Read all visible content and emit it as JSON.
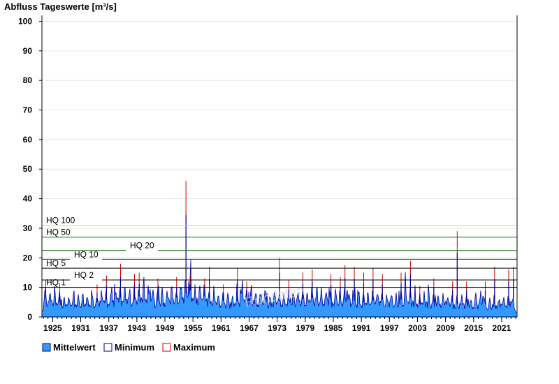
{
  "chart_data": {
    "type": "area",
    "title": "Abfluss Tageswerte [m³/s]",
    "ylim": [
      0,
      102
    ],
    "y_ticks": [
      0,
      10,
      20,
      30,
      40,
      50,
      60,
      70,
      80,
      90,
      100
    ],
    "xlim": [
      1922.7,
      2024.3
    ],
    "x_ticks": [
      1925,
      1931,
      1937,
      1943,
      1949,
      1955,
      1961,
      1967,
      1973,
      1979,
      1985,
      1991,
      1997,
      2003,
      2009,
      2015,
      2021
    ],
    "grid": true,
    "legend_position": "bottom-left",
    "series": [
      {
        "name": "Mittelwert",
        "color": "#3399ff",
        "values": [
          [
            1923,
            6.5
          ],
          [
            1924,
            5.5
          ],
          [
            1925,
            6.0
          ],
          [
            1926,
            5.0
          ],
          [
            1927,
            5.5
          ],
          [
            1928,
            4.5
          ],
          [
            1929,
            4.8
          ],
          [
            1930,
            5.0
          ],
          [
            1931,
            4.5
          ],
          [
            1932,
            5.2
          ],
          [
            1933,
            4.8
          ],
          [
            1934,
            5.0
          ],
          [
            1935,
            5.5
          ],
          [
            1936,
            6.0
          ],
          [
            1937,
            5.5
          ],
          [
            1938,
            6.0
          ],
          [
            1939,
            6.5
          ],
          [
            1940,
            6.0
          ],
          [
            1941,
            6.5
          ],
          [
            1942,
            6.0
          ],
          [
            1943,
            7.0
          ],
          [
            1944,
            6.5
          ],
          [
            1945,
            7.0
          ],
          [
            1946,
            6.0
          ],
          [
            1947,
            5.5
          ],
          [
            1948,
            6.5
          ],
          [
            1949,
            6.0
          ],
          [
            1950,
            7.0
          ],
          [
            1951,
            6.5
          ],
          [
            1952,
            7.0
          ],
          [
            1953,
            8.0
          ],
          [
            1954,
            9.0
          ],
          [
            1955,
            7.0
          ],
          [
            1956,
            6.5
          ],
          [
            1957,
            7.0
          ],
          [
            1958,
            6.5
          ],
          [
            1959,
            5.5
          ],
          [
            1960,
            5.5
          ],
          [
            1961,
            5.5
          ],
          [
            1962,
            5.0
          ],
          [
            1963,
            5.0
          ],
          [
            1964,
            5.5
          ],
          [
            1965,
            6.0
          ],
          [
            1966,
            6.0
          ],
          [
            1967,
            6.0
          ],
          [
            1968,
            6.0
          ],
          [
            1969,
            5.5
          ],
          [
            1970,
            6.0
          ],
          [
            1971,
            5.0
          ],
          [
            1972,
            5.0
          ],
          [
            1973,
            5.5
          ],
          [
            1974,
            6.0
          ],
          [
            1975,
            5.5
          ],
          [
            1976,
            5.0
          ],
          [
            1977,
            6.0
          ],
          [
            1978,
            6.0
          ],
          [
            1979,
            6.5
          ],
          [
            1980,
            6.5
          ],
          [
            1981,
            6.5
          ],
          [
            1982,
            6.0
          ],
          [
            1983,
            6.0
          ],
          [
            1984,
            6.0
          ],
          [
            1985,
            5.5
          ],
          [
            1986,
            6.5
          ],
          [
            1987,
            6.0
          ],
          [
            1988,
            6.0
          ],
          [
            1989,
            5.5
          ],
          [
            1990,
            5.5
          ],
          [
            1991,
            5.0
          ],
          [
            1992,
            5.5
          ],
          [
            1993,
            5.5
          ],
          [
            1994,
            6.0
          ],
          [
            1995,
            6.0
          ],
          [
            1996,
            5.0
          ],
          [
            1997,
            5.5
          ],
          [
            1998,
            5.5
          ],
          [
            1999,
            6.0
          ],
          [
            2000,
            6.0
          ],
          [
            2001,
            6.5
          ],
          [
            2002,
            6.0
          ],
          [
            2003,
            4.5
          ],
          [
            2004,
            5.0
          ],
          [
            2005,
            5.5
          ],
          [
            2006,
            5.0
          ],
          [
            2007,
            5.5
          ],
          [
            2008,
            5.0
          ],
          [
            2009,
            5.0
          ],
          [
            2010,
            5.0
          ],
          [
            2011,
            4.5
          ],
          [
            2012,
            5.0
          ],
          [
            2013,
            5.0
          ],
          [
            2014,
            4.5
          ],
          [
            2015,
            4.5
          ],
          [
            2016,
            4.5
          ],
          [
            2017,
            4.5
          ],
          [
            2018,
            4.0
          ],
          [
            2019,
            4.5
          ],
          [
            2020,
            4.0
          ],
          [
            2021,
            4.5
          ],
          [
            2022,
            4.0
          ],
          [
            2023,
            6.0
          ],
          [
            2024,
            2.0
          ]
        ]
      },
      {
        "name": "Minimum",
        "color": "#000080",
        "values": []
      },
      {
        "name": "Maximum",
        "color": "#cc0000",
        "values": [
          [
            1923,
            12.5
          ],
          [
            1926,
            11.5
          ],
          [
            1934,
            11.0
          ],
          [
            1936,
            14.0
          ],
          [
            1939,
            18.0
          ],
          [
            1942,
            14.5
          ],
          [
            1943,
            15.0
          ],
          [
            1947,
            13.0
          ],
          [
            1951,
            13.5
          ],
          [
            1953,
            46.0
          ],
          [
            1954,
            14.5
          ],
          [
            1957,
            13.0
          ],
          [
            1958,
            17.0
          ],
          [
            1961,
            11.0
          ],
          [
            1964,
            16.5
          ],
          [
            1966,
            12.0
          ],
          [
            1973,
            20.0
          ],
          [
            1975,
            12.5
          ],
          [
            1978,
            15.0
          ],
          [
            1980,
            16.0
          ],
          [
            1984,
            14.5
          ],
          [
            1986,
            13.5
          ],
          [
            1987,
            17.5
          ],
          [
            1989,
            17.0
          ],
          [
            1991,
            15.0
          ],
          [
            1993,
            16.5
          ],
          [
            1995,
            14.5
          ],
          [
            1999,
            15.0
          ],
          [
            2001,
            19.0
          ],
          [
            2003,
            10.5
          ],
          [
            2006,
            13.0
          ],
          [
            2010,
            12.0
          ],
          [
            2011,
            29.0
          ],
          [
            2013,
            12.0
          ],
          [
            2017,
            12.0
          ],
          [
            2019,
            17.0
          ],
          [
            2022,
            16.0
          ],
          [
            2023,
            17.0
          ]
        ]
      }
    ],
    "hq_lines": [
      {
        "label": "HQ 100",
        "value": 31.0,
        "color": "#e8c870"
      },
      {
        "label": "HQ 50",
        "value": 27.0,
        "color": "#006400"
      },
      {
        "label": "HQ 20",
        "value": 22.5,
        "color": "#006400"
      },
      {
        "label": "HQ 10",
        "value": 19.5,
        "color": "#006400"
      },
      {
        "label": "HQ 5",
        "value": 16.5,
        "color": "#000000"
      },
      {
        "label": "HQ 2",
        "value": 12.5,
        "color": "#000000"
      },
      {
        "label": "HQ 1",
        "value": 10.0,
        "color": "#000000"
      }
    ],
    "watermark": "Rohdaten"
  },
  "legend": {
    "items": [
      {
        "label": "Mittelwert",
        "fill": "#3399ff",
        "stroke": "#000080"
      },
      {
        "label": "Minimum",
        "fill": "#ffffff",
        "stroke": "#000080"
      },
      {
        "label": "Maximum",
        "fill": "#ffffff",
        "stroke": "#cc0000"
      }
    ]
  }
}
